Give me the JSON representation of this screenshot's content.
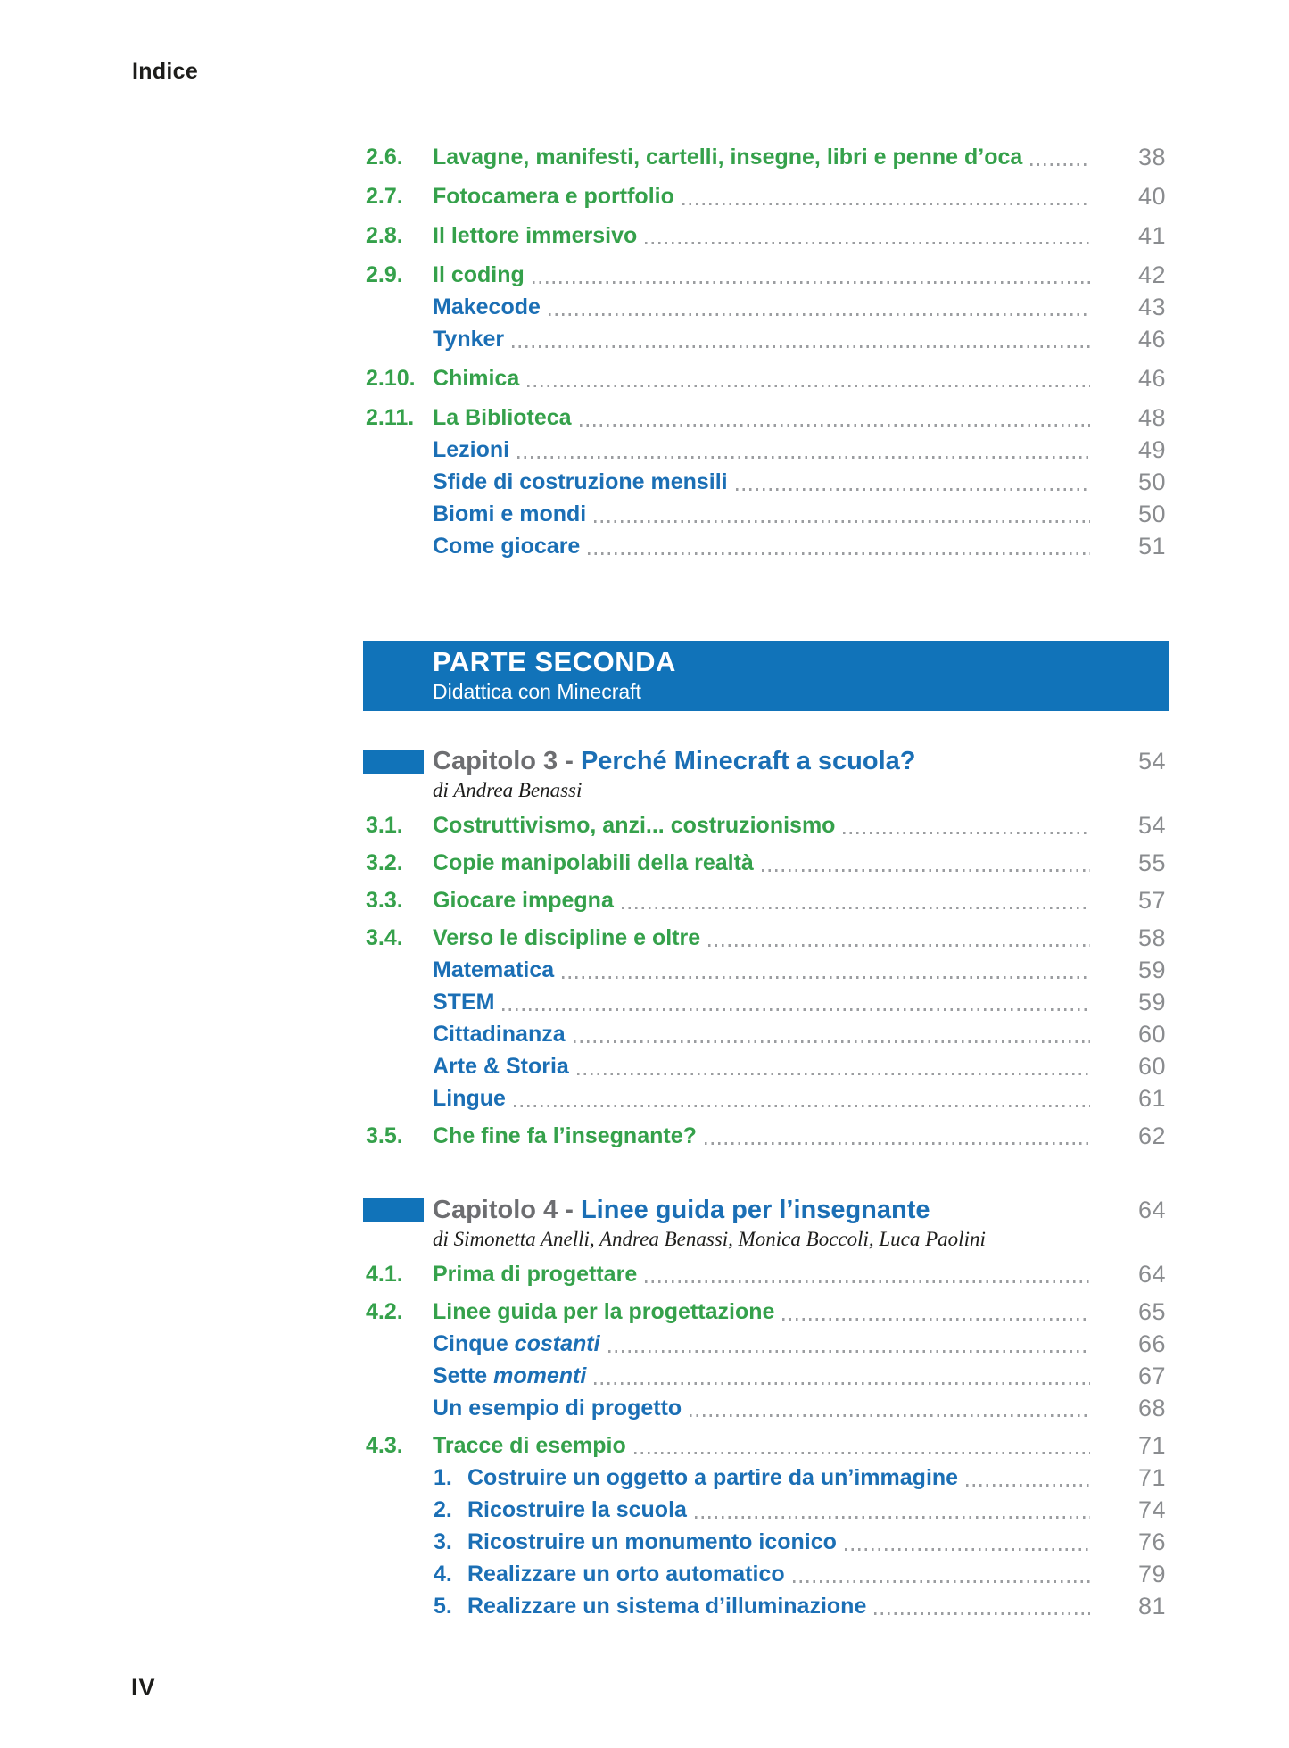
{
  "page": {
    "header": "Indice",
    "footer_folio": "IV"
  },
  "colors": {
    "green": "#35a14b",
    "blue": "#1b6fb5",
    "banner_blue": "#1173b9",
    "page_number_gray": "#8a8c8f",
    "chapter_label_gray": "#6d6e71",
    "dot_leader_gray": "#9b9da0",
    "text_dark": "#1d1d1b"
  },
  "toc_block_1": [
    {
      "type": "section",
      "num": "2.6.",
      "label": "Lavagne, manifesti, cartelli, insegne, libri e penne d’oca",
      "page": "38"
    },
    {
      "type": "section",
      "num": "2.7.",
      "label": "Fotocamera e portfolio",
      "page": "40"
    },
    {
      "type": "section",
      "num": "2.8.",
      "label": "Il lettore immersivo",
      "page": "41"
    },
    {
      "type": "section",
      "num": "2.9.",
      "label": "Il coding",
      "page": "42"
    },
    {
      "type": "sub",
      "label": "Makecode",
      "page": "43"
    },
    {
      "type": "sub",
      "label": "Tynker",
      "page": "46"
    },
    {
      "type": "section",
      "num": "2.10.",
      "label": "Chimica",
      "page": "46"
    },
    {
      "type": "section",
      "num": "2.11.",
      "label": "La Biblioteca",
      "page": "48"
    },
    {
      "type": "sub",
      "label": "Lezioni",
      "page": "49"
    },
    {
      "type": "sub",
      "label": "Sfide di costruzione mensili",
      "page": "50"
    },
    {
      "type": "sub",
      "label": "Biomi e mondi",
      "page": "50"
    },
    {
      "type": "sub",
      "label": "Come giocare",
      "page": "51"
    }
  ],
  "part_banner": {
    "title": "PARTE SECONDA",
    "subtitle": "Didattica con Minecraft"
  },
  "chapters": [
    {
      "label": "Capitolo 3 - ",
      "title": "Perché Minecraft a scuola?",
      "page": "54",
      "byline": "di Andrea Benassi",
      "rows": [
        {
          "type": "section",
          "num": "3.1.",
          "label": "Costruttivismo, anzi... costruzionismo",
          "page": "54"
        },
        {
          "type": "section",
          "num": "3.2.",
          "label": "Copie manipolabili della realtà",
          "page": "55"
        },
        {
          "type": "section",
          "num": "3.3.",
          "label": "Giocare impegna",
          "page": "57"
        },
        {
          "type": "section",
          "num": "3.4.",
          "label": "Verso le discipline e oltre",
          "page": "58"
        },
        {
          "type": "sub",
          "label": "Matematica",
          "page": "59"
        },
        {
          "type": "sub",
          "label": "STEM",
          "page": "59"
        },
        {
          "type": "sub",
          "label": "Cittadinanza",
          "page": "60"
        },
        {
          "type": "sub",
          "label": "Arte & Storia",
          "page": "60"
        },
        {
          "type": "sub",
          "label": "Lingue",
          "page": "61"
        },
        {
          "type": "section",
          "num": "3.5.",
          "label": "Che fine fa l’insegnante?",
          "page": "62"
        }
      ]
    },
    {
      "label": "Capitolo 4 - ",
      "title": "Linee guida per l’insegnante",
      "page": "64",
      "byline": "di Simonetta Anelli, Andrea Benassi, Monica Boccoli, Luca Paolini",
      "rows": [
        {
          "type": "section",
          "num": "4.1.",
          "label": "Prima di progettare",
          "page": "64"
        },
        {
          "type": "section",
          "num": "4.2.",
          "label": "Linee guida per la progettazione",
          "page": "65"
        },
        {
          "type": "sub",
          "label": "Cinque ",
          "label_italic": "costanti",
          "page": "66"
        },
        {
          "type": "sub",
          "label": "Sette ",
          "label_italic": "momenti",
          "page": "67"
        },
        {
          "type": "sub",
          "label": "Un esempio di progetto",
          "page": "68"
        },
        {
          "type": "section",
          "num": "4.3.",
          "label": "Tracce di esempio",
          "page": "71"
        },
        {
          "type": "numbered",
          "num": "1.",
          "label": "Costruire un oggetto a partire da un’immagine",
          "page": "71"
        },
        {
          "type": "numbered",
          "num": "2.",
          "label": "Ricostruire la scuola",
          "page": "74"
        },
        {
          "type": "numbered",
          "num": "3.",
          "label": "Ricostruire un monumento iconico",
          "page": "76"
        },
        {
          "type": "numbered",
          "num": "4.",
          "label": "Realizzare un orto automatico",
          "page": "79"
        },
        {
          "type": "numbered",
          "num": "5.",
          "label": "Realizzare un sistema d’illuminazione",
          "page": "81"
        }
      ]
    }
  ]
}
